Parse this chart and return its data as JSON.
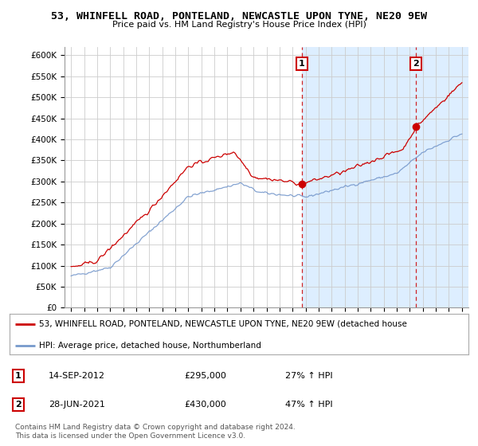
{
  "title": "53, WHINFELL ROAD, PONTELAND, NEWCASTLE UPON TYNE, NE20 9EW",
  "subtitle": "Price paid vs. HM Land Registry's House Price Index (HPI)",
  "ylabel_ticks": [
    "£0",
    "£50K",
    "£100K",
    "£150K",
    "£200K",
    "£250K",
    "£300K",
    "£350K",
    "£400K",
    "£450K",
    "£500K",
    "£550K",
    "£600K"
  ],
  "ylim": [
    0,
    620000
  ],
  "ytick_vals": [
    0,
    50000,
    100000,
    150000,
    200000,
    250000,
    300000,
    350000,
    400000,
    450000,
    500000,
    550000,
    600000
  ],
  "x_start_year": 1995,
  "x_end_year": 2025,
  "transaction1_date": 2012.71,
  "transaction1_price": 295000,
  "transaction1_label": "1",
  "transaction2_date": 2021.49,
  "transaction2_price": 430000,
  "transaction2_label": "2",
  "red_line_color": "#cc0000",
  "blue_line_color": "#7799cc",
  "background_color": "#ffffff",
  "grid_color": "#cccccc",
  "shaded_color": "#ddeeff",
  "legend_red_label": "53, WHINFELL ROAD, PONTELAND, NEWCASTLE UPON TYNE, NE20 9EW (detached house",
  "legend_blue_label": "HPI: Average price, detached house, Northumberland",
  "annotation1_date": "14-SEP-2012",
  "annotation1_price": "£295,000",
  "annotation1_hpi": "27% ↑ HPI",
  "annotation2_date": "28-JUN-2021",
  "annotation2_price": "£430,000",
  "annotation2_hpi": "47% ↑ HPI",
  "footnote": "Contains HM Land Registry data © Crown copyright and database right 2024.\nThis data is licensed under the Open Government Licence v3.0."
}
